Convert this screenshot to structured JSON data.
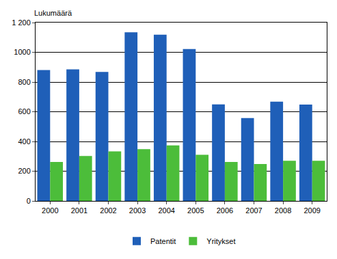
{
  "chart_data": {
    "type": "bar",
    "ylabel": "Lukumäärä",
    "categories": [
      "2000",
      "2001",
      "2002",
      "2003",
      "2004",
      "2005",
      "2006",
      "2007",
      "2008",
      "2009"
    ],
    "series": [
      {
        "name": "Patentit",
        "color": "#1f5fb8",
        "values": [
          880,
          885,
          868,
          1135,
          1118,
          1022,
          650,
          558,
          668,
          648
        ]
      },
      {
        "name": "Yritykset",
        "color": "#4cbd3a",
        "values": [
          262,
          302,
          333,
          348,
          373,
          310,
          262,
          248,
          270,
          270
        ]
      }
    ],
    "ylim": [
      0,
      1200
    ],
    "yticks": [
      0,
      200,
      400,
      600,
      800,
      1000,
      {
        "value": 1200,
        "label": "1 200"
      }
    ],
    "grid": true,
    "legend": "bottom"
  }
}
